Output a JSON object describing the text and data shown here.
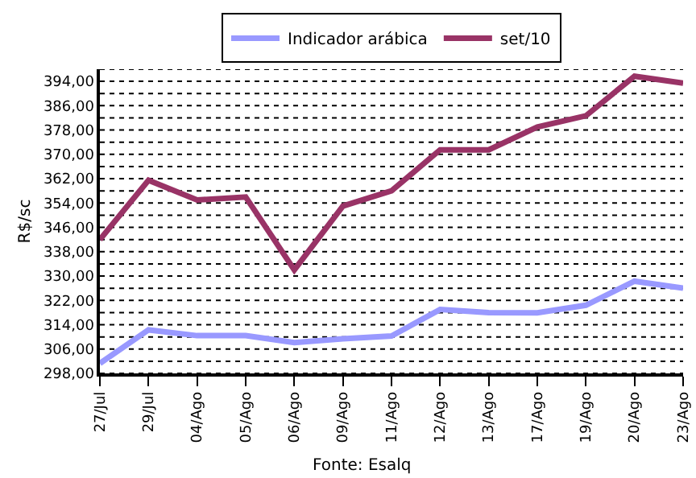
{
  "chart_data": {
    "type": "line",
    "ylabel": "R$/sc",
    "categories": [
      "27/Jul",
      "29/Jul",
      "04/Ago",
      "05/Ago",
      "06/Ago",
      "09/Ago",
      "11/Ago",
      "12/Ago",
      "13/Ago",
      "17/Ago",
      "19/Ago",
      "20/Ago",
      "23/Ago"
    ],
    "series": [
      {
        "name": "Indicador arábica",
        "color": "#9999ff",
        "values": [
          301.3,
          312.3,
          310.4,
          310.4,
          308.1,
          309.4,
          310.3,
          319,
          318,
          317.9,
          320.4,
          328.3,
          326
        ]
      },
      {
        "name": "set/10",
        "color": "#993366",
        "values": [
          342,
          361.5,
          355,
          356,
          332,
          353,
          358,
          371.5,
          371.5,
          379,
          382.7,
          395.7,
          393.4
        ]
      }
    ],
    "ylim": [
      298,
      398
    ],
    "yticks": [
      {
        "value": 298,
        "label": "298,00"
      },
      {
        "value": 302,
        "label": null
      },
      {
        "value": 306,
        "label": "306,00"
      },
      {
        "value": 310,
        "label": null
      },
      {
        "value": 314,
        "label": "314,00"
      },
      {
        "value": 318,
        "label": null
      },
      {
        "value": 322,
        "label": "322,00"
      },
      {
        "value": 326,
        "label": null
      },
      {
        "value": 330,
        "label": "330,00"
      },
      {
        "value": 334,
        "label": null
      },
      {
        "value": 338,
        "label": "338,00"
      },
      {
        "value": 342,
        "label": null
      },
      {
        "value": 346,
        "label": "346,00"
      },
      {
        "value": 350,
        "label": null
      },
      {
        "value": 354,
        "label": "354,00"
      },
      {
        "value": 358,
        "label": null
      },
      {
        "value": 362,
        "label": "362,00"
      },
      {
        "value": 366,
        "label": null
      },
      {
        "value": 370,
        "label": "370,00"
      },
      {
        "value": 374,
        "label": null
      },
      {
        "value": 378,
        "label": "378,00"
      },
      {
        "value": 382,
        "label": null
      },
      {
        "value": 386,
        "label": "386,00"
      },
      {
        "value": 390,
        "label": null
      },
      {
        "value": 394,
        "label": "394,00"
      },
      {
        "value": 398,
        "label": null
      }
    ],
    "grid": "y",
    "line_style": "solid",
    "marker": "none",
    "legend": "top",
    "annotations": [
      "Fonte: Esalq"
    ]
  }
}
